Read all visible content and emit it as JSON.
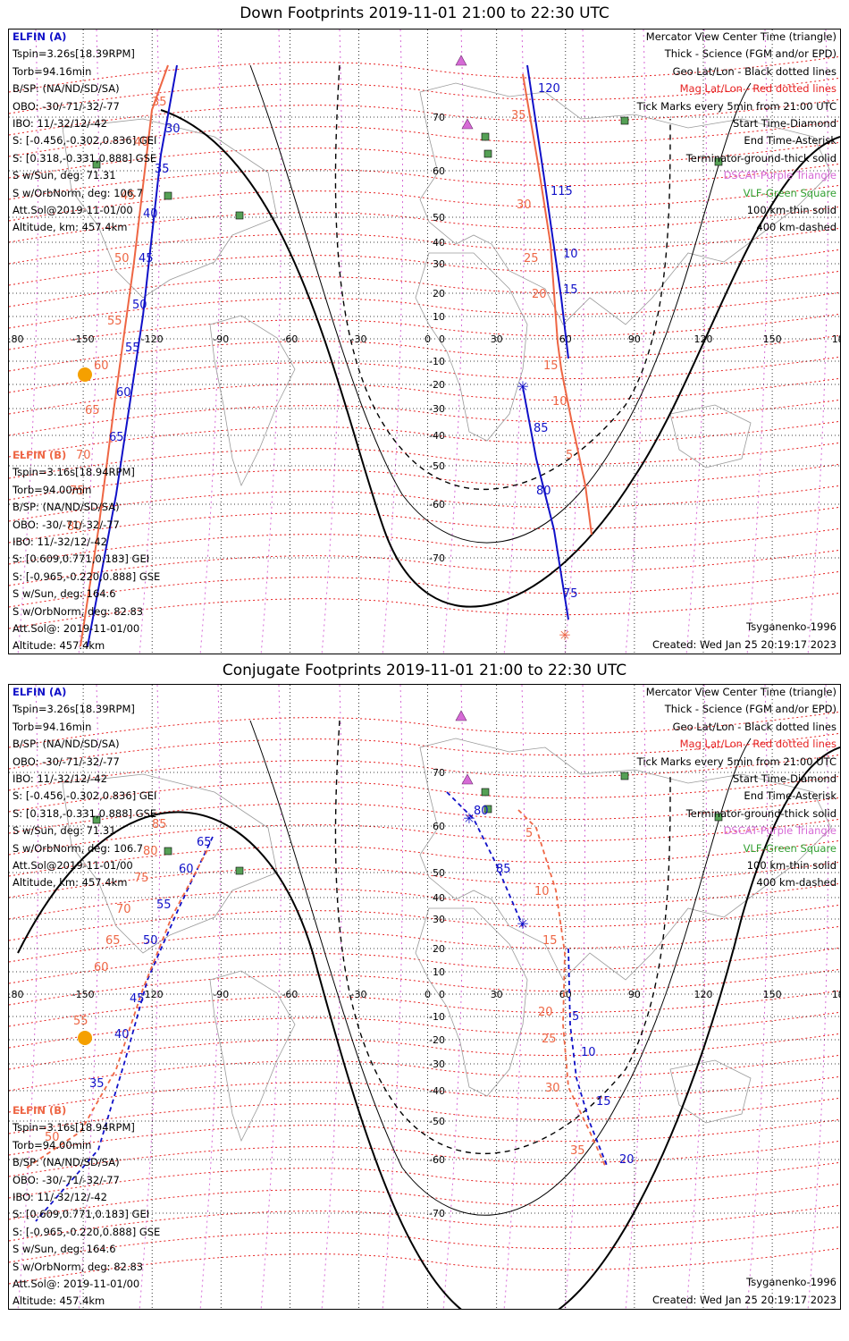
{
  "panels": [
    {
      "title": "Down Footprints 2019-11-01 21:00 to 22:30 UTC",
      "sc_a_title": "ELFIN (A)",
      "sc_a_lines": [
        "Tspin=3.26s[18.39RPM]",
        "Torb=94.16min",
        "B/SP: (NA/ND/SD/SA)",
        "OBO: -30/-71/-32/-77",
        "IBO: 11/-32/12/-42",
        "S: [-0.456,-0.302,0.836] GEI",
        "S: [0.318,-0.331,0.888] GSE",
        "S w/Sun, deg: 71.31",
        "S w/OrbNorm, deg: 106.7",
        "Att.Sol@2019-11-01/00",
        "Altitude, km: 457.4km"
      ],
      "sc_b_title": "ELFIN (B)",
      "sc_b_lines": [
        "Tspin=3.16s[18.94RPM]",
        "Torb=94.00min",
        "B/SP: (NA/ND/SD/SA)",
        "OBO: -30/-71/-32/-77",
        "IBO: 11/-32/12/-42",
        "S: [0.609,0.771,0.183] GEI",
        "S: [-0.965,-0.220,0.888] GSE",
        "S w/Sun, deg: 164.6",
        "S w/OrbNorm, deg: 82.83",
        "Att.Sol@: 2019-11-01/00",
        "Altitude: 457.4km"
      ],
      "model": "Tsyganenko-1996",
      "created": "Created: Wed Jan 25 20:19:17 2023",
      "a_track_labels": [
        "30",
        "35",
        "40",
        "45",
        "50",
        "55",
        "60",
        "65"
      ],
      "b_track_labels": [
        "35",
        "40",
        "45",
        "50",
        "55",
        "60",
        "65",
        "70",
        "75",
        "80"
      ],
      "a_track2_labels": [
        "120",
        "115",
        "10",
        "15",
        "85",
        "80",
        "75"
      ],
      "b_track2_labels": [
        "35",
        "30",
        "25",
        "20",
        "15",
        "10",
        "5"
      ]
    },
    {
      "title": "Conjugate Footprints 2019-11-01 21:00 to 22:30 UTC",
      "sc_a_title": "ELFIN (A)",
      "sc_a_lines": [
        "Tspin=3.26s[18.39RPM]",
        "Torb=94.16min",
        "B/SP: (NA/ND/SD/SA)",
        "OBO: -30/-71/-32/-77",
        "IBO: 11/-32/12/-42",
        "S: [-0.456,-0.302,0.836] GEI",
        "S: [0.318,-0.331,0.888] GSE",
        "S w/Sun, deg: 71.31",
        "S w/OrbNorm, deg: 106.7",
        "Att.Sol@2019-11-01/00",
        "Altitude, km: 457.4km"
      ],
      "sc_b_title": "ELFIN (B)",
      "sc_b_lines": [
        "Tspin=3.16s[18.94RPM]",
        "Torb=94.00min",
        "B/SP: (NA/ND/SD/SA)",
        "OBO: -30/-71/-32/-77",
        "IBO: 11/-32/12/-42",
        "S: [0.609,0.771,0.183] GEI",
        "S: [-0.965,-0.220,0.888] GSE",
        "S w/Sun, deg: 164.6",
        "S w/OrbNorm, deg: 82.83",
        "Att.Sol@: 2019-11-01/00",
        "Altitude: 457.4km"
      ],
      "model": "Tsyganenko-1996",
      "created": "Created: Wed Jan 25 20:19:17 2023",
      "a_track_labels": [
        "65",
        "60",
        "55",
        "50",
        "45",
        "40",
        "35"
      ],
      "b_track_labels": [
        "85",
        "80",
        "75",
        "70",
        "65",
        "60",
        "55",
        "50"
      ],
      "a_track2_labels": [
        "80",
        "85",
        "5",
        "10",
        "15",
        "20"
      ],
      "b_track2_labels": [
        "5",
        "10",
        "15",
        "20",
        "25",
        "30",
        "35"
      ]
    }
  ],
  "legend": {
    "line1": "Mercator View Center Time (triangle)",
    "line2": "Thick - Science (FGM and/or EPD)",
    "line3": "Geo Lat/Lon - Black dotted lines",
    "line4": "Mag Lat/Lon - Red dotted lines",
    "line5": "Tick Marks every 5min from 21:00 UTC",
    "line6": "Start Time-Diamond",
    "line7": "End Time-Asterisk",
    "line8": "Terminator-ground-thick solid",
    "line9": "DSCAT-Purple Triangle",
    "line10": "VLF-Green Square",
    "line11": "100 km-thin solid",
    "line12": "400 km-dashed"
  },
  "map": {
    "lon_labels": [
      "180",
      "-150",
      "-120",
      "-90",
      "-60",
      "-30",
      "0",
      "30",
      "60",
      "90",
      "120",
      "150",
      "180"
    ],
    "lat_labels": [
      "70",
      "60",
      "50",
      "40",
      "30",
      "20",
      "10",
      "0",
      "-10",
      "-20",
      "-30",
      "-40",
      "-50",
      "-60",
      "-70"
    ]
  },
  "colors": {
    "elfin_a": "#1010c8",
    "elfin_b": "#ee6644",
    "mag_grid": "#e62222",
    "geo_grid": "#000000",
    "dscat": "#d66ad6",
    "vlf": "#33a033",
    "sun": "#f5a000"
  }
}
